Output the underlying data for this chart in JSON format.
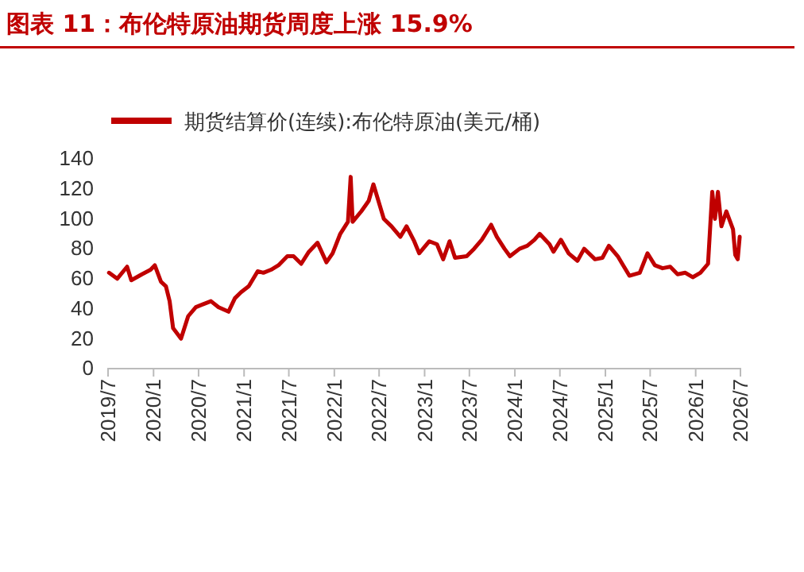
{
  "chart_data": {
    "type": "line",
    "title": "图表 11：布伦特原油期货周度上涨 15.9%",
    "legend": "top",
    "grid": false,
    "x": [
      "2019-07-05",
      "2019-08-07",
      "2019-09-16",
      "2019-10-03",
      "2019-11-15",
      "2019-12-20",
      "2020-01-06",
      "2020-01-31",
      "2020-02-20",
      "2020-03-06",
      "2020-03-20",
      "2020-04-21",
      "2020-05-20",
      "2020-06-20",
      "2020-07-20",
      "2020-08-20",
      "2020-09-20",
      "2020-10-30",
      "2020-11-25",
      "2020-12-20",
      "2021-01-20",
      "2021-02-25",
      "2021-03-20",
      "2021-04-20",
      "2021-05-20",
      "2021-06-25",
      "2021-07-20",
      "2021-08-20",
      "2021-09-20",
      "2021-10-25",
      "2021-11-30",
      "2021-12-25",
      "2022-01-25",
      "2022-02-25",
      "2022-03-08",
      "2022-03-16",
      "2022-04-20",
      "2022-05-20",
      "2022-06-08",
      "2022-07-20",
      "2022-08-20",
      "2022-09-25",
      "2022-10-20",
      "2022-11-20",
      "2022-12-10",
      "2023-01-20",
      "2023-02-20",
      "2023-03-17",
      "2023-04-12",
      "2023-05-04",
      "2023-06-20",
      "2023-07-20",
      "2023-08-20",
      "2023-09-27",
      "2023-10-20",
      "2023-11-20",
      "2023-12-12",
      "2024-01-20",
      "2024-02-20",
      "2024-03-20",
      "2024-04-10",
      "2024-05-20",
      "2024-06-05",
      "2024-07-05",
      "2024-08-05",
      "2024-09-10",
      "2024-10-07",
      "2024-11-20",
      "2024-12-20",
      "2025-01-15",
      "2025-02-20",
      "2025-03-10",
      "2025-04-08",
      "2025-05-20",
      "2025-06-20",
      "2025-07-20",
      "2025-08-20",
      "2025-09-20",
      "2025-10-20",
      "2025-11-20",
      "2025-12-20",
      "2026-01-20",
      "2026-02-20",
      "2026-03-09",
      "2026-03-20",
      "2026-04-01",
      "2026-04-15",
      "2026-05-05",
      "2026-06-01",
      "2026-06-10",
      "2026-06-20",
      "2026-06-28"
    ],
    "series": [
      {
        "name": "期货结算价(连续):布伦特原油(美元/桶)",
        "color": "#c00000",
        "values": [
          64,
          60,
          68,
          59,
          63,
          66,
          69,
          58,
          55,
          45,
          27,
          20,
          35,
          41,
          43,
          45,
          41,
          38,
          47,
          51,
          55,
          65,
          64,
          66,
          69,
          75,
          75,
          70,
          78,
          84,
          71,
          77,
          90,
          98,
          128,
          98,
          105,
          112,
          123,
          100,
          95,
          88,
          95,
          85,
          77,
          85,
          83,
          73,
          85,
          74,
          75,
          80,
          86,
          96,
          88,
          80,
          75,
          80,
          82,
          86,
          90,
          83,
          78,
          86,
          77,
          72,
          80,
          73,
          74,
          82,
          75,
          70,
          62,
          64,
          77,
          69,
          67,
          68,
          63,
          64,
          61,
          64,
          70,
          118,
          100,
          118,
          95,
          105,
          93,
          76,
          73,
          88
        ]
      }
    ],
    "ylim": [
      0,
      140
    ],
    "yticks": [
      0,
      20,
      40,
      60,
      80,
      100,
      120,
      140
    ],
    "xlim": [
      "2019-07-01",
      "2026-07-01"
    ],
    "xticks": [
      {
        "value": "2019-07-01",
        "label": "2019/7"
      },
      {
        "value": "2020-01-01",
        "label": "2020/1"
      },
      {
        "value": "2020-07-01",
        "label": "2020/7"
      },
      {
        "value": "2021-01-01",
        "label": "2021/1"
      },
      {
        "value": "2021-07-01",
        "label": "2021/7"
      },
      {
        "value": "2022-01-01",
        "label": "2022/1"
      },
      {
        "value": "2022-07-01",
        "label": "2022/7"
      },
      {
        "value": "2023-01-01",
        "label": "2023/1"
      },
      {
        "value": "2023-07-01",
        "label": "2023/7"
      },
      {
        "value": "2024-01-01",
        "label": "2024/1"
      },
      {
        "value": "2024-07-01",
        "label": "2024/7"
      },
      {
        "value": "2025-01-01",
        "label": "2025/1"
      },
      {
        "value": "2025-07-01",
        "label": "2025/7"
      },
      {
        "value": "2026-01-01",
        "label": "2026/1"
      },
      {
        "value": "2026-07-01",
        "label": "2026/7"
      }
    ]
  }
}
